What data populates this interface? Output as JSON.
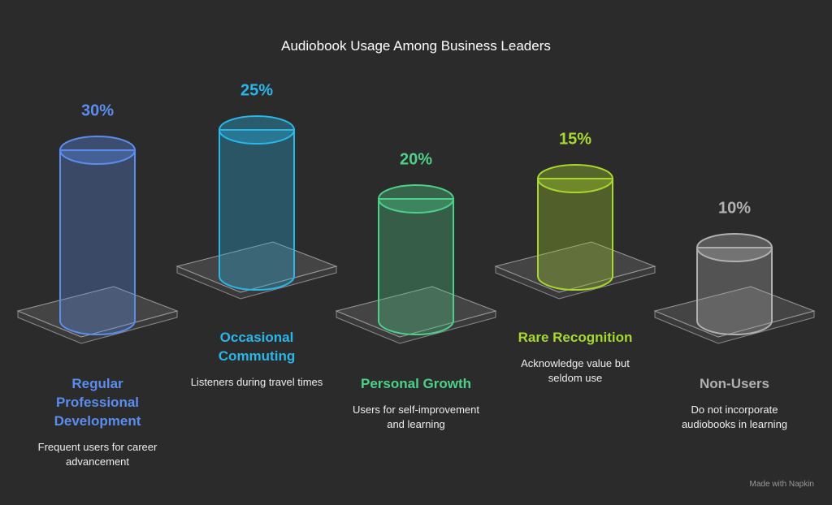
{
  "chart_data": {
    "type": "cylinder",
    "title": "Audiobook Usage Among Business Leaders",
    "categories": [
      "Regular Professional Development",
      "Occasional Commuting",
      "Personal Growth",
      "Rare Recognition",
      "Non-Users"
    ],
    "descriptions": [
      "Frequent users for career advancement",
      "Listeners during travel times",
      "Users for self-improvement and learning",
      "Acknowledge value but seldom use",
      "Do not incorporate audiobooks in learning"
    ],
    "values": [
      30,
      25,
      20,
      15,
      10
    ],
    "value_labels": [
      "30%",
      "25%",
      "20%",
      "15%",
      "10%"
    ],
    "colors": [
      "#5b8def",
      "#29b6e8",
      "#4cd08a",
      "#a8d82c",
      "#b0b0b0"
    ]
  },
  "footer": "Made with Napkin"
}
